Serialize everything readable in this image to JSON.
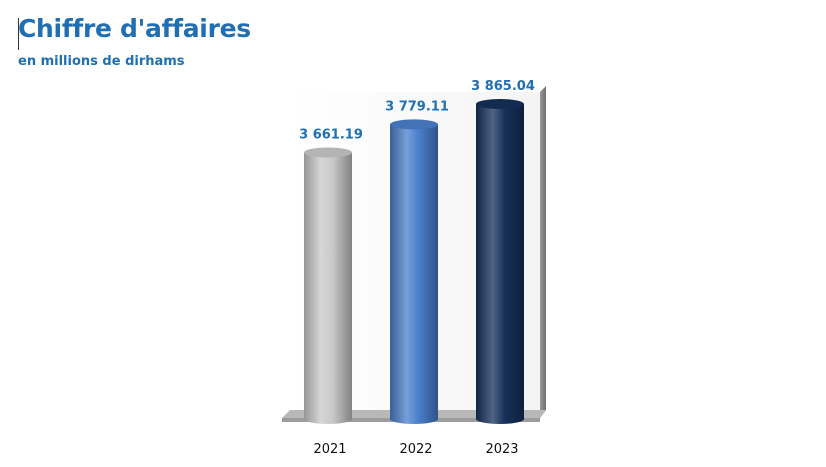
{
  "header": {
    "title": "Chiffre d'affaires",
    "subtitle": "en millions de dirhams"
  },
  "colors": {
    "title": "#1f6fb2",
    "label": "#1f6fb2",
    "bar_2021": "#c8c8c8",
    "bar_2022": "#4a7fcb",
    "bar_2023": "#16305a"
  },
  "chart_data": {
    "type": "bar",
    "title": "Chiffre d'affaires",
    "subtitle": "en millions de dirhams",
    "categories": [
      "2021",
      "2022",
      "2023"
    ],
    "values": [
      3661.19,
      3779.11,
      3865.04
    ],
    "value_labels": [
      "3 661.19",
      "3 779.11",
      "3 865.04"
    ],
    "series_colors": [
      "#c8c8c8",
      "#4a7fcb",
      "#16305a"
    ],
    "bar_shape": "cylinder",
    "grid": false,
    "legend": "none"
  }
}
